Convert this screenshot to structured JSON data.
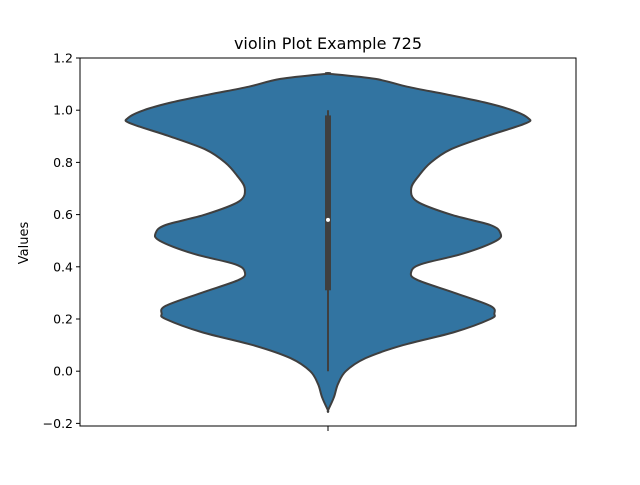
{
  "chart_data": {
    "type": "violin",
    "title": "violin Plot Example 725",
    "xlabel": "",
    "ylabel": "Values",
    "ylim": [
      -0.21,
      1.2
    ],
    "yticks": [
      -0.2,
      0.0,
      0.2,
      0.4,
      0.6,
      0.8,
      1.0,
      1.2
    ],
    "ytick_labels": [
      "−0.2",
      "0.0",
      "0.2",
      "0.4",
      "0.6",
      "0.8",
      "1.0",
      "1.2"
    ],
    "colors": {
      "body": "#3274a1",
      "edge": "#3f3f3f",
      "box": "#3f3f3f",
      "median": "#ffffff"
    },
    "violin": {
      "kde_profile": [
        [
          -0.15,
          0.0
        ],
        [
          -0.1,
          0.03
        ],
        [
          -0.05,
          0.05
        ],
        [
          0.0,
          0.09
        ],
        [
          0.05,
          0.19
        ],
        [
          0.1,
          0.38
        ],
        [
          0.15,
          0.64
        ],
        [
          0.2,
          0.82
        ],
        [
          0.22,
          0.84
        ],
        [
          0.25,
          0.82
        ],
        [
          0.3,
          0.64
        ],
        [
          0.35,
          0.45
        ],
        [
          0.38,
          0.42
        ],
        [
          0.41,
          0.47
        ],
        [
          0.45,
          0.68
        ],
        [
          0.5,
          0.85
        ],
        [
          0.53,
          0.87
        ],
        [
          0.56,
          0.82
        ],
        [
          0.6,
          0.62
        ],
        [
          0.65,
          0.45
        ],
        [
          0.7,
          0.42
        ],
        [
          0.75,
          0.46
        ],
        [
          0.8,
          0.52
        ],
        [
          0.85,
          0.62
        ],
        [
          0.9,
          0.8
        ],
        [
          0.95,
          1.0
        ],
        [
          0.97,
          1.01
        ],
        [
          1.0,
          0.93
        ],
        [
          1.03,
          0.79
        ],
        [
          1.06,
          0.6
        ],
        [
          1.09,
          0.4
        ],
        [
          1.12,
          0.24
        ],
        [
          1.14,
          0.0
        ]
      ],
      "whisker_low": 0.0,
      "q1": 0.31,
      "median": 0.58,
      "q3": 0.98,
      "whisker_high": 1.0
    }
  }
}
